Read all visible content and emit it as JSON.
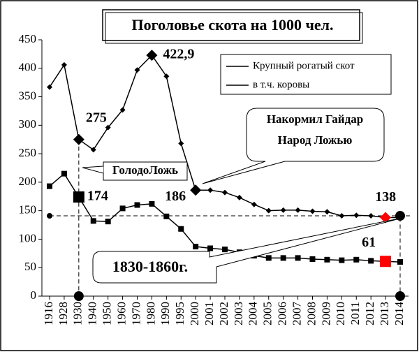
{
  "chart_data": {
    "type": "line",
    "title": "Поголовье скота на 1000 чел.",
    "categories": [
      "1916",
      "1928",
      "1930",
      "1940",
      "1950",
      "1960",
      "1970",
      "1980",
      "1990",
      "1995",
      "2000",
      "2001",
      "2002",
      "2003",
      "2004",
      "2005",
      "2006",
      "2007",
      "2008",
      "2009",
      "2010",
      "2011",
      "2012",
      "2013",
      "2014"
    ],
    "series": [
      {
        "name": "Крупный рогатый скот",
        "color": "#000000",
        "marker": "diamond",
        "values": [
          367,
          406,
          275,
          257,
          296,
          327,
          397,
          422.9,
          386,
          268,
          186,
          186,
          182,
          173,
          161,
          150,
          151,
          151,
          149,
          148,
          141,
          142,
          141,
          138,
          138
        ],
        "value_labels": [
          null,
          null,
          "275",
          null,
          null,
          null,
          null,
          "422,9",
          null,
          null,
          "186",
          null,
          null,
          null,
          null,
          null,
          null,
          null,
          null,
          null,
          null,
          null,
          null,
          "138",
          null
        ]
      },
      {
        "name": "в т.ч. коровы",
        "color": "#000000",
        "marker": "square",
        "values": [
          193,
          215,
          174,
          132,
          131,
          154,
          160,
          162,
          140,
          118,
          87,
          84,
          82,
          77,
          71,
          67,
          67,
          67,
          65,
          64,
          63,
          64,
          62,
          61,
          60
        ],
        "value_labels": [
          null,
          null,
          "174",
          null,
          null,
          null,
          null,
          null,
          null,
          null,
          null,
          null,
          null,
          null,
          null,
          null,
          null,
          null,
          null,
          null,
          null,
          null,
          null,
          "61",
          null
        ]
      }
    ],
    "highlight_color": "#ff0000",
    "ylim": [
      0,
      450
    ],
    "yticks": [
      0,
      50,
      100,
      150,
      200,
      250,
      300,
      350,
      400,
      450
    ],
    "reference_line": 141,
    "vertical_lines": [
      "1930",
      "2014"
    ],
    "annotations": [
      "ГолодоЛожь",
      "Накормил Гайдар",
      "Народ Ложью",
      "1830-1860г."
    ]
  }
}
